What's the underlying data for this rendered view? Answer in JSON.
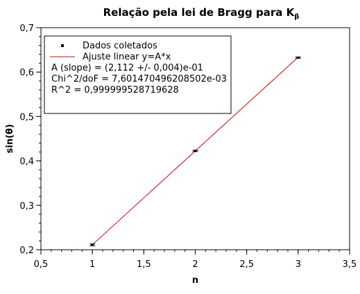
{
  "chart_data": {
    "type": "scatter",
    "title": "Relação pela lei de Bragg para K",
    "title_subscript": "β",
    "xlabel": "n",
    "ylabel": "sin(θ)",
    "xlim": [
      0.5,
      3.5
    ],
    "ylim": [
      0.2,
      0.7
    ],
    "x_ticks": [
      0.5,
      1,
      1.5,
      2,
      2.5,
      3,
      3.5
    ],
    "x_tick_labels": [
      "0,5",
      "1",
      "1,5",
      "2",
      "2,5",
      "3",
      "3,5"
    ],
    "y_ticks": [
      0.2,
      0.3,
      0.4,
      0.5,
      0.6,
      0.7
    ],
    "y_tick_labels": [
      "0,2",
      "0,3",
      "0,4",
      "0,5",
      "0,6",
      "0,7"
    ],
    "x_minor_step": 0.1,
    "y_minor_step": 0.02,
    "grid": false,
    "legend_position": "top-left",
    "series": [
      {
        "name": "Dados coletados",
        "kind": "points-with-error-bars",
        "color": "#000000",
        "x": [
          1,
          2,
          3
        ],
        "y": [
          0.211,
          0.4225,
          0.6325
        ],
        "yerr": [
          0.002,
          0.0015,
          0.0015
        ]
      },
      {
        "name": "Ajuste linear y=A*x",
        "kind": "line",
        "color": "#cc0000",
        "x": [
          1,
          3
        ],
        "y": [
          0.2112,
          0.6336
        ]
      }
    ],
    "annotations": [
      "A (slope) = (2,112 +/- 0,004)e-01",
      "Chi^2/doF = 7,601470496208502e-03",
      "R^2 = 0,999999528719628"
    ]
  }
}
